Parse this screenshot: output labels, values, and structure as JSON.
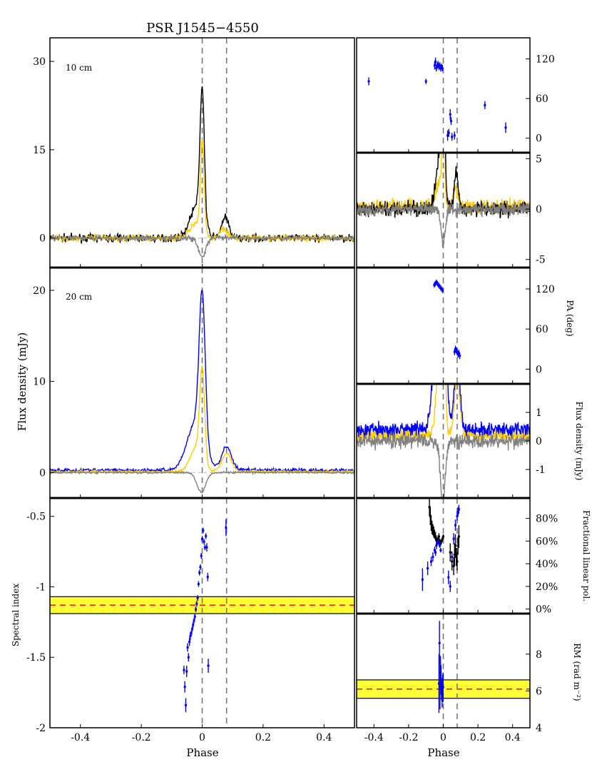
{
  "title": "PSR J1545−4550",
  "xlabel": "Phase",
  "colors": {
    "total_intensity": "#000000",
    "linear_pol": "#ffcc00",
    "circular_pol": "#808080",
    "blue": "#0000ff",
    "band_fill": "#ffff33",
    "mean_line": "#ff0000",
    "marker_line": "#777777"
  },
  "phase_markers": [
    0.0,
    0.08
  ],
  "chart_data": [
    {
      "id": "profile-10cm",
      "type": "line",
      "label": "10 cm",
      "xlim": [
        -0.5,
        0.5
      ],
      "ylim": [
        -5,
        34
      ],
      "yticks": [
        "0",
        "15",
        "30"
      ],
      "ytick_values": [
        0,
        15,
        30
      ],
      "xticks": [],
      "series": [
        {
          "key": "I",
          "color": "#000000",
          "profile": {
            "base": 0.0,
            "noise": 0.45,
            "comps": [
              [
                0.0,
                0.007,
                22.0
              ],
              [
                -0.018,
                0.022,
                5.5
              ],
              [
                0.075,
                0.012,
                3.5
              ]
            ]
          }
        },
        {
          "key": "L",
          "color": "#ffcc00",
          "profile": {
            "base": 0.0,
            "noise": 0.4,
            "comps": [
              [
                0.0,
                0.006,
                15.5
              ],
              [
                -0.02,
                0.02,
                2.5
              ],
              [
                0.07,
                0.012,
                1.8
              ]
            ]
          }
        },
        {
          "key": "V",
          "color": "#808080",
          "profile": {
            "base": 0.0,
            "noise": 0.35,
            "comps": [
              [
                0.0,
                0.012,
                -3.2
              ]
            ]
          }
        }
      ]
    },
    {
      "id": "profile-20cm",
      "type": "line",
      "label": "20 cm",
      "ylabel": "Flux density (mJy)",
      "xlim": [
        -0.5,
        0.5
      ],
      "ylim": [
        -2.8,
        22.5
      ],
      "yticks": [
        "0",
        "10",
        "20"
      ],
      "ytick_values": [
        0,
        10,
        20
      ],
      "xticks": [],
      "series": [
        {
          "key": "I",
          "color": "#0000ff",
          "profile": {
            "base": 0.25,
            "noise": 0.15,
            "comps": [
              [
                0.0,
                0.01,
                16.0
              ],
              [
                -0.022,
                0.028,
                5.2
              ],
              [
                0.08,
                0.016,
                2.6
              ]
            ]
          }
        },
        {
          "key": "L",
          "color": "#ffcc00",
          "profile": {
            "base": 0.1,
            "noise": 0.1,
            "comps": [
              [
                0.0,
                0.008,
                10.0
              ],
              [
                -0.02,
                0.02,
                2.6
              ],
              [
                0.08,
                0.016,
                2.0
              ]
            ]
          }
        },
        {
          "key": "V",
          "color": "#808080",
          "profile": {
            "base": 0.0,
            "noise": 0.08,
            "comps": [
              [
                -0.003,
                0.014,
                -2.2
              ]
            ]
          }
        }
      ]
    },
    {
      "id": "spectral-index",
      "type": "scatter",
      "ylabel": "Spectral index",
      "xlim": [
        -0.5,
        0.5
      ],
      "ylim": [
        -2.0,
        -0.37
      ],
      "yticks": [
        "-2",
        "-1.5",
        "-1",
        "-0.5"
      ],
      "ytick_values": [
        -2.0,
        -1.5,
        -1.0,
        -0.5
      ],
      "xticks": [
        "-0.4",
        "-0.2",
        "0",
        "0.2",
        "0.4"
      ],
      "xtick_values": [
        -0.4,
        -0.2,
        0.0,
        0.2,
        0.4
      ],
      "band": {
        "low": -1.19,
        "high": -1.07,
        "mean": -1.13
      },
      "points": [
        [
          -0.06,
          -1.59,
          0.03
        ],
        [
          -0.057,
          -1.71,
          0.04
        ],
        [
          -0.054,
          -1.84,
          0.05
        ],
        [
          -0.051,
          -1.6,
          0.04
        ],
        [
          -0.048,
          -1.43,
          0.03
        ],
        [
          -0.045,
          -1.5,
          0.03
        ],
        [
          -0.042,
          -1.39,
          0.03
        ],
        [
          -0.039,
          -1.35,
          0.03
        ],
        [
          -0.036,
          -1.33,
          0.02
        ],
        [
          -0.033,
          -1.3,
          0.02
        ],
        [
          -0.03,
          -1.27,
          0.02
        ],
        [
          -0.027,
          -1.24,
          0.02
        ],
        [
          -0.024,
          -1.21,
          0.02
        ],
        [
          -0.021,
          -1.16,
          0.02
        ],
        [
          -0.018,
          -1.12,
          0.02
        ],
        [
          -0.015,
          -1.08,
          0.02
        ],
        [
          -0.012,
          -0.98,
          0.02
        ],
        [
          -0.009,
          -0.9,
          0.02
        ],
        [
          -0.006,
          -0.86,
          0.02
        ],
        [
          -0.003,
          -0.78,
          0.02
        ],
        [
          0.0,
          -0.66,
          0.02
        ],
        [
          0.003,
          -0.6,
          0.02
        ],
        [
          0.006,
          -0.68,
          0.02
        ],
        [
          0.009,
          -0.72,
          0.02
        ],
        [
          0.012,
          -0.64,
          0.02
        ],
        [
          0.015,
          -0.72,
          0.03
        ],
        [
          0.018,
          -0.93,
          0.03
        ],
        [
          0.02,
          -1.56,
          0.05
        ],
        [
          0.078,
          -0.58,
          0.06
        ]
      ]
    },
    {
      "id": "pa-10cm",
      "type": "scatter",
      "xlim": [
        -0.5,
        0.5
      ],
      "ylim": [
        -22,
        152
      ],
      "yticks": [
        "0",
        "60",
        "120"
      ],
      "ytick_values": [
        0,
        60,
        120
      ],
      "xticks": [],
      "points": [
        [
          -0.43,
          86,
          6
        ],
        [
          -0.1,
          86,
          4
        ],
        [
          -0.05,
          110,
          6
        ],
        [
          -0.045,
          116,
          6
        ],
        [
          -0.04,
          106,
          5
        ],
        [
          -0.035,
          110,
          5
        ],
        [
          -0.03,
          112,
          5
        ],
        [
          -0.025,
          108,
          5
        ],
        [
          -0.02,
          110,
          5
        ],
        [
          -0.015,
          106,
          5
        ],
        [
          -0.01,
          108,
          5
        ],
        [
          -0.005,
          106,
          5
        ],
        [
          0.025,
          4,
          8
        ],
        [
          0.032,
          8,
          6
        ],
        [
          0.04,
          36,
          8
        ],
        [
          0.045,
          26,
          6
        ],
        [
          0.05,
          2,
          6
        ],
        [
          0.065,
          4,
          6
        ],
        [
          0.24,
          50,
          6
        ],
        [
          0.36,
          16,
          8
        ]
      ]
    },
    {
      "id": "zoom-10cm",
      "type": "line",
      "xlim": [
        -0.5,
        0.5
      ],
      "ylim": [
        -5.8,
        5.6
      ],
      "yticks": [
        "-5",
        "0",
        "5"
      ],
      "ytick_values": [
        -5,
        0,
        5
      ],
      "xticks": [],
      "series": [
        {
          "key": "L",
          "color": "#ffcc00",
          "profile": {
            "base": 0.3,
            "noise": 0.5,
            "comps": [
              [
                0.0,
                0.006,
                15.5
              ],
              [
                -0.02,
                0.02,
                2.5
              ],
              [
                0.07,
                0.012,
                1.8
              ]
            ]
          }
        },
        {
          "key": "I",
          "color": "#000000",
          "profile": {
            "base": 0.0,
            "noise": 0.5,
            "comps": [
              [
                0.0,
                0.007,
                22.0
              ],
              [
                -0.018,
                0.022,
                5.5
              ],
              [
                0.075,
                0.012,
                3.5
              ]
            ]
          }
        },
        {
          "key": "V",
          "color": "#808080",
          "profile": {
            "base": 0.0,
            "noise": 0.45,
            "comps": [
              [
                0.0,
                0.012,
                -3.2
              ]
            ]
          }
        }
      ]
    },
    {
      "id": "pa-20cm",
      "type": "scatter",
      "ylabel": "PA (deg)",
      "xlim": [
        -0.5,
        0.5
      ],
      "ylim": [
        -22,
        152
      ],
      "yticks": [
        "0",
        "60",
        "120"
      ],
      "ytick_values": [
        0,
        60,
        120
      ],
      "xticks": [],
      "points": [
        [
          -0.052,
          126,
          4
        ],
        [
          -0.046,
          128,
          4
        ],
        [
          -0.04,
          130,
          4
        ],
        [
          -0.034,
          128,
          4
        ],
        [
          -0.028,
          126,
          4
        ],
        [
          -0.022,
          124,
          4
        ],
        [
          -0.016,
          122,
          4
        ],
        [
          -0.01,
          120,
          4
        ],
        [
          -0.004,
          118,
          4
        ],
        [
          0.065,
          26,
          5
        ],
        [
          0.07,
          30,
          5
        ],
        [
          0.075,
          28,
          5
        ],
        [
          0.08,
          26,
          5
        ],
        [
          0.085,
          22,
          5
        ],
        [
          0.09,
          24,
          5
        ],
        [
          0.095,
          20,
          5
        ]
      ]
    },
    {
      "id": "zoom-20cm",
      "type": "line",
      "ylabel": "Flux density (mJy)",
      "xlim": [
        -0.5,
        0.5
      ],
      "ylim": [
        -2.0,
        2.0
      ],
      "yticks": [
        "-1",
        "0",
        "1"
      ],
      "ytick_values": [
        -1,
        0,
        1
      ],
      "xticks": [],
      "series": [
        {
          "key": "L",
          "color": "#ffcc00",
          "profile": {
            "base": 0.2,
            "noise": 0.15,
            "comps": [
              [
                0.0,
                0.008,
                10.0
              ],
              [
                -0.02,
                0.02,
                2.6
              ],
              [
                0.08,
                0.016,
                2.0
              ]
            ]
          }
        },
        {
          "key": "I",
          "color": "#0000ff",
          "profile": {
            "base": 0.4,
            "noise": 0.18,
            "comps": [
              [
                0.0,
                0.01,
                16.0
              ],
              [
                -0.022,
                0.028,
                5.2
              ],
              [
                0.08,
                0.016,
                2.6
              ]
            ]
          }
        },
        {
          "key": "V",
          "color": "#808080",
          "profile": {
            "base": 0.0,
            "noise": 0.18,
            "comps": [
              [
                -0.003,
                0.014,
                -2.2
              ]
            ]
          }
        }
      ]
    },
    {
      "id": "fractional-pol",
      "type": "scatter",
      "ylabel": "Fractional linear pol.",
      "xlim": [
        -0.5,
        0.5
      ],
      "ylim": [
        -0.04,
        0.98
      ],
      "yticks": [
        "0%",
        "20%",
        "40%",
        "60%",
        "80%"
      ],
      "ytick_values": [
        0.0,
        0.2,
        0.4,
        0.6,
        0.8
      ],
      "xticks": [],
      "series": [
        {
          "key": "10cm",
          "color": "#000000",
          "points": [
            [
              -0.08,
              0.9,
              0.08
            ],
            [
              -0.075,
              0.82,
              0.08
            ],
            [
              -0.07,
              0.76,
              0.07
            ],
            [
              -0.065,
              0.72,
              0.06
            ],
            [
              -0.06,
              0.7,
              0.05
            ],
            [
              -0.055,
              0.68,
              0.05
            ],
            [
              -0.05,
              0.66,
              0.04
            ],
            [
              -0.045,
              0.64,
              0.04
            ],
            [
              -0.04,
              0.62,
              0.03
            ],
            [
              -0.035,
              0.6,
              0.03
            ],
            [
              -0.03,
              0.62,
              0.03
            ],
            [
              -0.025,
              0.64,
              0.03
            ],
            [
              -0.02,
              0.6,
              0.02
            ],
            [
              -0.015,
              0.58,
              0.02
            ],
            [
              -0.01,
              0.6,
              0.02
            ],
            [
              -0.005,
              0.62,
              0.02
            ],
            [
              0.0,
              0.64,
              0.02
            ],
            [
              0.04,
              0.5,
              0.08
            ],
            [
              0.05,
              0.42,
              0.08
            ],
            [
              0.06,
              0.38,
              0.08
            ],
            [
              0.065,
              0.48,
              0.1
            ],
            [
              0.07,
              0.56,
              0.1
            ],
            [
              0.075,
              0.46,
              0.08
            ],
            [
              0.08,
              0.42,
              0.08
            ],
            [
              0.085,
              0.56,
              0.08
            ],
            [
              0.09,
              0.64,
              0.1
            ]
          ]
        },
        {
          "key": "20cm",
          "color": "#0000ff",
          "points": [
            [
              -0.12,
              0.26,
              0.1
            ],
            [
              -0.09,
              0.36,
              0.06
            ],
            [
              -0.07,
              0.42,
              0.04
            ],
            [
              -0.06,
              0.46,
              0.04
            ],
            [
              -0.05,
              0.52,
              0.03
            ],
            [
              -0.045,
              0.5,
              0.03
            ],
            [
              -0.04,
              0.56,
              0.03
            ],
            [
              -0.035,
              0.58,
              0.02
            ],
            [
              -0.03,
              0.6,
              0.02
            ],
            [
              -0.025,
              0.58,
              0.02
            ],
            [
              -0.02,
              0.56,
              0.02
            ],
            [
              -0.015,
              0.52,
              0.02
            ],
            [
              0.03,
              0.28,
              0.06
            ],
            [
              0.04,
              0.2,
              0.05
            ],
            [
              0.05,
              0.46,
              0.05
            ],
            [
              0.06,
              0.62,
              0.05
            ],
            [
              0.07,
              0.74,
              0.05
            ],
            [
              0.08,
              0.82,
              0.04
            ],
            [
              0.085,
              0.86,
              0.04
            ],
            [
              0.09,
              0.88,
              0.04
            ]
          ]
        }
      ]
    },
    {
      "id": "rm",
      "type": "scatter",
      "ylabel": "RM (rad m⁻²)",
      "xlim": [
        -0.5,
        0.5
      ],
      "ylim": [
        4.0,
        10.2
      ],
      "yticks": [
        "4",
        "6",
        "8"
      ],
      "ytick_values": [
        4,
        6,
        8
      ],
      "xticks": [
        "-0.4",
        "-0.2",
        "0",
        "0.2",
        "0.4"
      ],
      "xtick_values": [
        -0.4,
        -0.2,
        0.0,
        0.2,
        0.4
      ],
      "band": {
        "low": 5.6,
        "high": 6.6,
        "mean": 6.1
      },
      "points": [
        [
          -0.025,
          6.4,
          1.6
        ],
        [
          -0.022,
          8.6,
          1.2
        ],
        [
          -0.019,
          6.2,
          1.2
        ],
        [
          -0.016,
          7.0,
          0.9
        ],
        [
          -0.013,
          6.6,
          0.8
        ],
        [
          -0.01,
          6.1,
          0.6
        ],
        [
          -0.007,
          5.8,
          0.7
        ],
        [
          -0.004,
          6.3,
          0.6
        ],
        [
          -0.001,
          6.2,
          0.8
        ]
      ]
    }
  ]
}
